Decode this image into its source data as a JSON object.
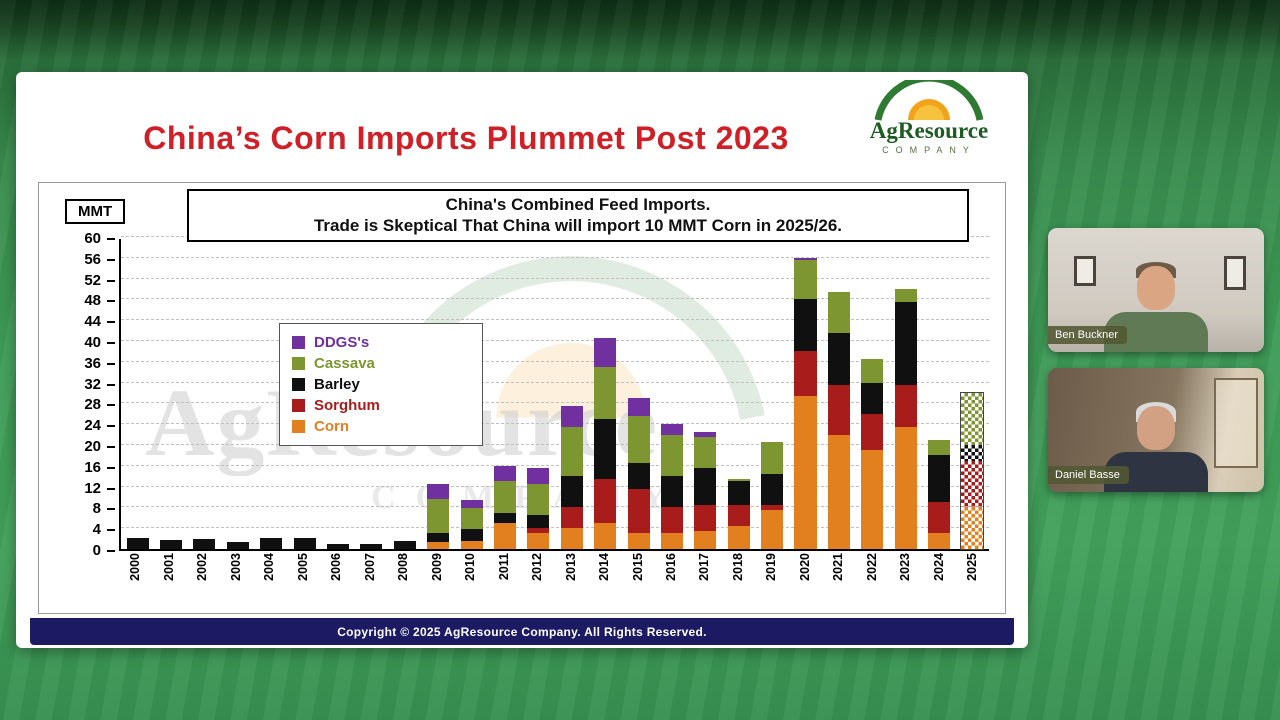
{
  "slide": {
    "title": "China’s Corn Imports Plummet Post 2023",
    "logo": {
      "name": "AgResource",
      "subtitle": "COMPANY"
    },
    "footer": "Copyright © 2025 AgResource Company.  All Rights Reserved.",
    "watermark_text": "AgResource",
    "watermark_sub": "COMPANY"
  },
  "chart_data": {
    "type": "bar",
    "stacked": true,
    "title_line1": "China's Combined Feed Imports.",
    "title_line2": "Trade is Skeptical That China will import 10 MMT Corn in 2025/26.",
    "ylabel": "MMT",
    "ylim": [
      0,
      60
    ],
    "ytick_step": 4,
    "grid": true,
    "legend_position": "upper-left-inside",
    "categories": [
      "2000",
      "2001",
      "2002",
      "2003",
      "2004",
      "2005",
      "2006",
      "2007",
      "2008",
      "2009",
      "2010",
      "2011",
      "2012",
      "2013",
      "2014",
      "2015",
      "2016",
      "2017",
      "2018",
      "2019",
      "2020",
      "2021",
      "2022",
      "2023",
      "2024",
      "2025"
    ],
    "series": [
      {
        "name": "Corn",
        "color": "#e2801f",
        "values": [
          0,
          0,
          0,
          0,
          0,
          0,
          0,
          0,
          0,
          1.3,
          1.5,
          5,
          3,
          4,
          5,
          3,
          3,
          3.5,
          4.5,
          7.5,
          29.5,
          22,
          19,
          23.5,
          3,
          8
        ]
      },
      {
        "name": "Sorghum",
        "color": "#a81c1c",
        "values": [
          0,
          0,
          0,
          0,
          0,
          0,
          0,
          0,
          0,
          0,
          0,
          0,
          1,
          4,
          8.5,
          8.5,
          5,
          5,
          4,
          1,
          8.5,
          9.5,
          7,
          8,
          6,
          9
        ]
      },
      {
        "name": "Barley",
        "color": "#101010",
        "values": [
          2.2,
          1.8,
          1.9,
          1.4,
          2.1,
          2.2,
          1,
          0.9,
          1.6,
          1.8,
          2.4,
          2,
          2.5,
          6,
          11.5,
          5,
          6,
          7,
          4.5,
          6,
          10,
          10,
          6,
          16,
          9,
          3
        ]
      },
      {
        "name": "Cassava",
        "color": "#7d9632",
        "values": [
          0,
          0,
          0,
          0,
          0,
          0,
          0,
          0,
          0,
          6.5,
          4,
          6,
          6,
          9.5,
          10,
          9,
          8,
          6,
          0.5,
          6,
          7.5,
          8,
          4.5,
          2.5,
          3,
          10
        ]
      },
      {
        "name": "DDGS's",
        "color": "#7030a0",
        "values": [
          0,
          0,
          0,
          0,
          0,
          0,
          0,
          0,
          0,
          3,
          1.6,
          3,
          3,
          4,
          5.5,
          3.5,
          2,
          1,
          0,
          0,
          0.5,
          0,
          0,
          0,
          0,
          0
        ]
      }
    ],
    "legend_order": [
      "DDGS's",
      "Cassava",
      "Barley",
      "Sorghum",
      "Corn"
    ],
    "forecast_categories": [
      "2025"
    ]
  },
  "videos": [
    {
      "name": "Ben Buckner"
    },
    {
      "name": "Daniel Basse"
    }
  ]
}
